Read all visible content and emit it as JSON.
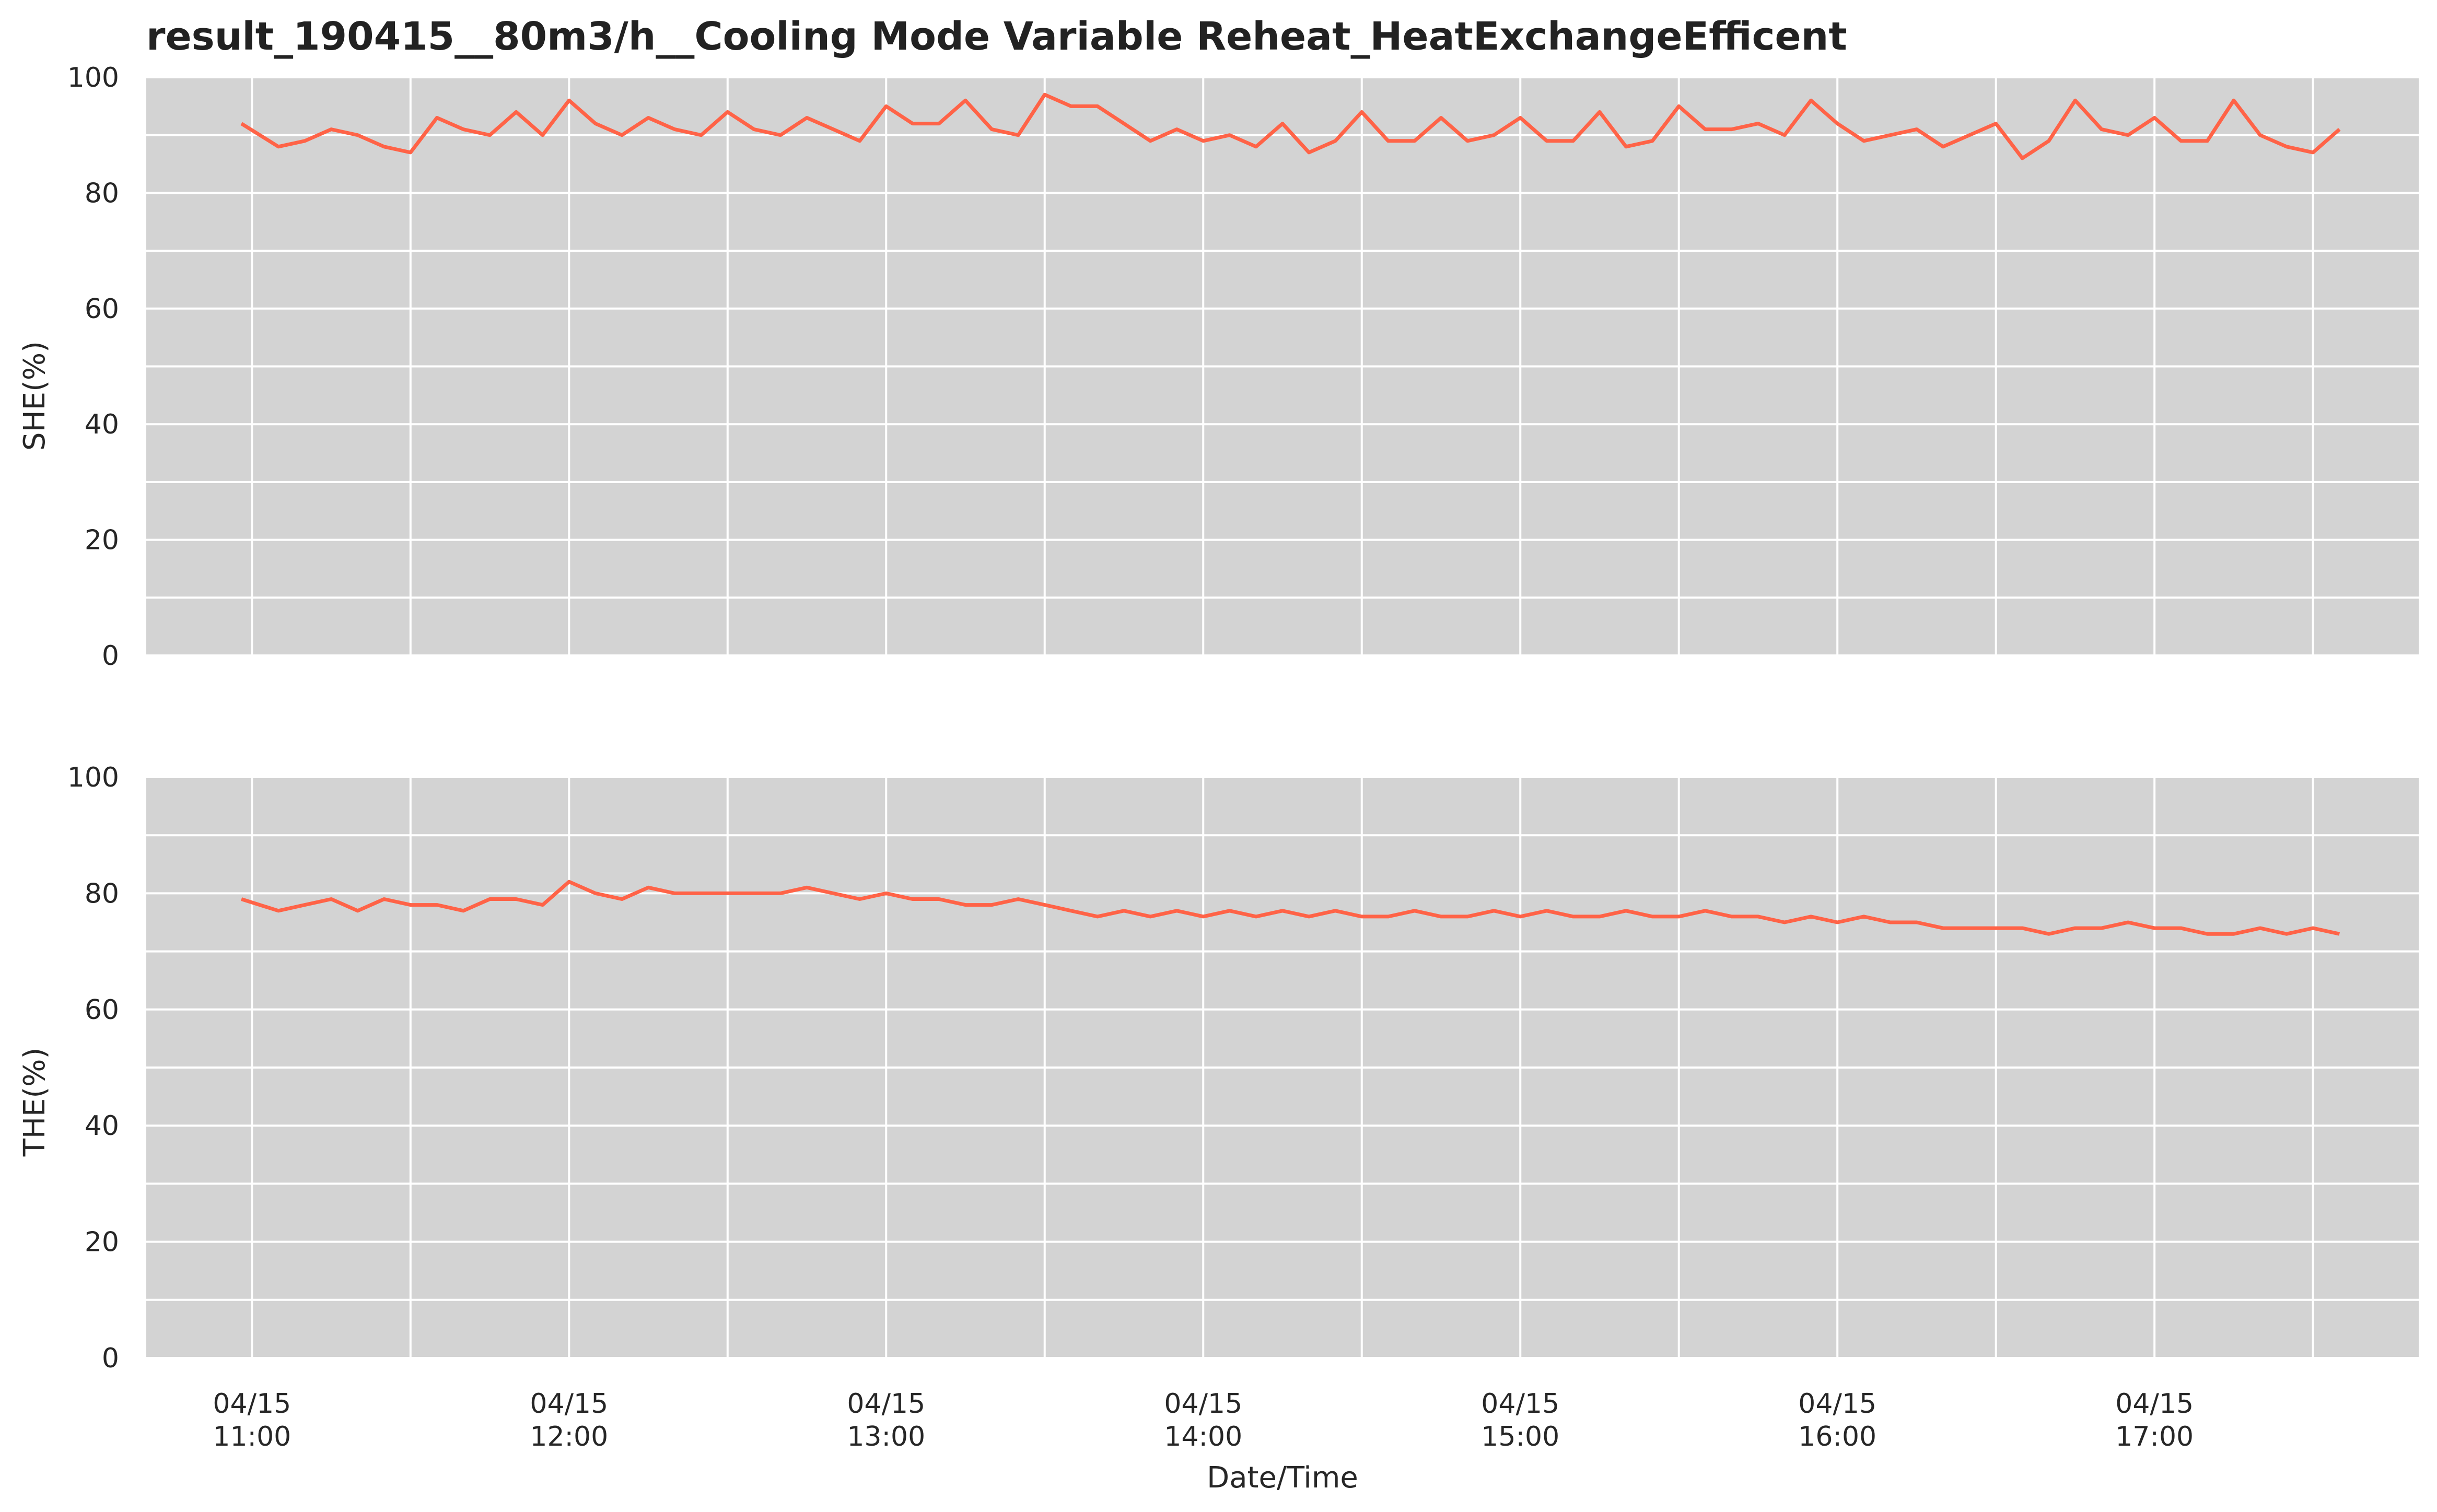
{
  "colors": {
    "line": "#ff6347",
    "plot_background": "#d3d3d3",
    "grid": "#ffffff",
    "text": "#262626"
  },
  "chart_data": {
    "title": "result_190415__80m3/h__Cooling Mode Variable Reheat_HeatExchangeEfficent",
    "type": "line",
    "xlabel": "Date/Time",
    "grid": true,
    "x_tick_labels": [
      {
        "time": "11:00",
        "line1": "04/15",
        "line2": "11:00"
      },
      {
        "time": "12:00",
        "line1": "04/15",
        "line2": "12:00"
      },
      {
        "time": "13:00",
        "line1": "04/15",
        "line2": "13:00"
      },
      {
        "time": "14:00",
        "line1": "04/15",
        "line2": "14:00"
      },
      {
        "time": "15:00",
        "line1": "04/15",
        "line2": "15:00"
      },
      {
        "time": "16:00",
        "line1": "04/15",
        "line2": "16:00"
      },
      {
        "time": "17:00",
        "line1": "04/15",
        "line2": "17:00"
      }
    ],
    "xlim": [
      "10:40",
      "17:50"
    ],
    "panels": [
      {
        "ylabel": "SHE(%)",
        "ylim": [
          0,
          100
        ],
        "yticks": [
          "0",
          "20",
          "40",
          "60",
          "80",
          "100"
        ],
        "x": [
          "10:58",
          "11:05",
          "11:10",
          "11:15",
          "11:20",
          "11:25",
          "11:30",
          "11:35",
          "11:40",
          "11:45",
          "11:50",
          "11:55",
          "12:00",
          "12:05",
          "12:10",
          "12:15",
          "12:20",
          "12:25",
          "12:30",
          "12:35",
          "12:40",
          "12:45",
          "12:50",
          "12:55",
          "13:00",
          "13:05",
          "13:10",
          "13:15",
          "13:20",
          "13:25",
          "13:30",
          "13:35",
          "13:40",
          "13:45",
          "13:50",
          "13:55",
          "14:00",
          "14:05",
          "14:10",
          "14:15",
          "14:20",
          "14:25",
          "14:30",
          "14:35",
          "14:40",
          "14:45",
          "14:50",
          "14:55",
          "15:00",
          "15:05",
          "15:10",
          "15:15",
          "15:20",
          "15:25",
          "15:30",
          "15:35",
          "15:40",
          "15:45",
          "15:50",
          "15:55",
          "16:00",
          "16:05",
          "16:10",
          "16:15",
          "16:20",
          "16:25",
          "16:30",
          "16:35",
          "16:40",
          "16:45",
          "16:50",
          "16:55",
          "17:00",
          "17:05",
          "17:10",
          "17:15",
          "17:20",
          "17:25",
          "17:30",
          "17:35"
        ],
        "values": [
          92,
          88,
          89,
          91,
          90,
          88,
          87,
          93,
          91,
          90,
          94,
          90,
          96,
          92,
          90,
          93,
          91,
          90,
          94,
          91,
          90,
          93,
          91,
          89,
          95,
          92,
          92,
          96,
          91,
          90,
          97,
          95,
          95,
          92,
          89,
          91,
          89,
          90,
          88,
          92,
          87,
          89,
          94,
          89,
          89,
          93,
          89,
          90,
          93,
          89,
          89,
          94,
          88,
          89,
          95,
          91,
          91,
          92,
          90,
          96,
          92,
          89,
          90,
          91,
          88,
          90,
          92,
          86,
          89,
          96,
          91,
          90,
          93,
          89,
          89,
          96,
          90,
          88,
          87,
          91
        ]
      },
      {
        "ylabel": "THE(%)",
        "ylim": [
          0,
          100
        ],
        "yticks": [
          "0",
          "20",
          "40",
          "60",
          "80",
          "100"
        ],
        "x": [
          "10:58",
          "11:05",
          "11:10",
          "11:15",
          "11:20",
          "11:25",
          "11:30",
          "11:35",
          "11:40",
          "11:45",
          "11:50",
          "11:55",
          "12:00",
          "12:05",
          "12:10",
          "12:15",
          "12:20",
          "12:25",
          "12:30",
          "12:35",
          "12:40",
          "12:45",
          "12:50",
          "12:55",
          "13:00",
          "13:05",
          "13:10",
          "13:15",
          "13:20",
          "13:25",
          "13:30",
          "13:35",
          "13:40",
          "13:45",
          "13:50",
          "13:55",
          "14:00",
          "14:05",
          "14:10",
          "14:15",
          "14:20",
          "14:25",
          "14:30",
          "14:35",
          "14:40",
          "14:45",
          "14:50",
          "14:55",
          "15:00",
          "15:05",
          "15:10",
          "15:15",
          "15:20",
          "15:25",
          "15:30",
          "15:35",
          "15:40",
          "15:45",
          "15:50",
          "15:55",
          "16:00",
          "16:05",
          "16:10",
          "16:15",
          "16:20",
          "16:25",
          "16:30",
          "16:35",
          "16:40",
          "16:45",
          "16:50",
          "16:55",
          "17:00",
          "17:05",
          "17:10",
          "17:15",
          "17:20",
          "17:25",
          "17:30",
          "17:35"
        ],
        "values": [
          79,
          77,
          78,
          79,
          77,
          79,
          78,
          78,
          77,
          79,
          79,
          78,
          82,
          80,
          79,
          81,
          80,
          80,
          80,
          80,
          80,
          81,
          80,
          79,
          80,
          79,
          79,
          78,
          78,
          79,
          78,
          77,
          76,
          77,
          76,
          77,
          76,
          77,
          76,
          77,
          76,
          77,
          76,
          76,
          77,
          76,
          76,
          77,
          76,
          77,
          76,
          76,
          77,
          76,
          76,
          77,
          76,
          76,
          75,
          76,
          75,
          76,
          75,
          75,
          74,
          74,
          74,
          74,
          73,
          74,
          74,
          75,
          74,
          74,
          73,
          73,
          74,
          73,
          74,
          73
        ]
      }
    ]
  }
}
